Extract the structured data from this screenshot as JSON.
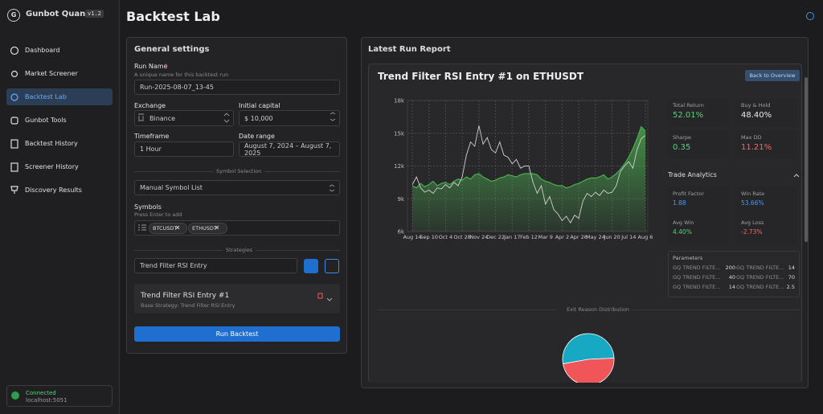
{
  "sidebar": {
    "logo": "G",
    "brand": "Gunbot Quant",
    "version": "v1.2",
    "nav": [
      "Dashboard",
      "Market Screener",
      "Backtest Lab",
      "Gunbot Tools",
      "Backtest History",
      "Screener History",
      "Discovery Results"
    ],
    "status": "Connected",
    "host": "localhost:5051"
  },
  "header": {
    "title": "Backtest Lab"
  },
  "settings": {
    "title": "General settings",
    "run_name_label": "Run Name",
    "required_mark": "*",
    "run_name_help": "A unique name for this backtest run",
    "run_name": "Run-2025-08-07_13-45",
    "exchange_label": "Exchange",
    "exchange": "Binance",
    "capital_label": "Initial capital",
    "capital": "$ 10,000",
    "timeframe_label": "Timeframe",
    "timeframe": "1 Hour",
    "date_label": "Date range",
    "date_range": "August 7, 2024 – August 7, 2025",
    "symbol_divider": "Symbol Selection",
    "symbol_mode": "Manual Symbol List",
    "symbols_label": "Symbols",
    "symbols_help": "Press Enter to add",
    "symbols": [
      "BTCUSDT",
      "ETHUSDT"
    ],
    "strategy_divider": "Strategies",
    "strategy_select": "Trend Filter RSI Entry",
    "strategy_card_title": "Trend Filter RSI Entry #1",
    "strategy_card_sub": "Base Strategy: Trend Filter RSI Entry",
    "run_button": "Run Backtest"
  },
  "report": {
    "title": "Latest Run Report",
    "run_title": "Trend Filter RSI Entry #1 on ETHUSDT",
    "back_button": "Back to Overview",
    "metrics": [
      {
        "label": "Total Return",
        "value": "52.01%"
      },
      {
        "label": "Buy & Hold",
        "value": "48.40%"
      },
      {
        "label": "Sharpe",
        "value": "0.35"
      },
      {
        "label": "Max DD",
        "value": "11.21%"
      }
    ],
    "analytics_title": "Trade Analytics",
    "analytics": [
      {
        "label": "Profit Factor",
        "value": "1.88"
      },
      {
        "label": "Win Rate",
        "value": "53.66%"
      },
      {
        "label": "Avg Win",
        "value": "4.40%"
      },
      {
        "label": "Avg Loss",
        "value": "-2.73%"
      }
    ],
    "parameters_title": "Parameters",
    "parameters": [
      [
        "GQ TREND FILTE...",
        "200",
        "GQ TREND FILTE...",
        "14"
      ],
      [
        "GQ TREND FILTE...",
        "40",
        "GQ TREND FILTE...",
        "70"
      ],
      [
        "GQ TREND FILTE...",
        "14",
        "GQ TREND FILTE...",
        "2.5"
      ]
    ]
  },
  "chart_data": [
    {
      "type": "line",
      "categories": [
        "Aug 14",
        null,
        null,
        null,
        "Sep 10",
        null,
        null,
        null,
        "Oct 4",
        null,
        null,
        null,
        "Oct 28",
        null,
        null,
        null,
        "Nov 24",
        null,
        null,
        null,
        "Dec 22",
        null,
        null,
        null,
        "Jan 17",
        null,
        null,
        null,
        "Feb 12",
        null,
        null,
        null,
        "Mar 9",
        null,
        null,
        null,
        "Apr 2",
        null,
        null,
        null,
        "Apr 26",
        null,
        null,
        null,
        "May 24",
        null,
        null,
        null,
        "Jun 20",
        null,
        null,
        null,
        "Jul 14",
        null,
        null,
        null,
        "Aug 6"
      ],
      "series": [
        {
          "color": "#4caf50",
          "area": true,
          "values": [
            10200,
            10000,
            10400,
            10100,
            10300,
            10600,
            10200,
            10400,
            10500,
            10300,
            10600,
            10800,
            10700,
            11000,
            10800,
            11200,
            11300,
            11000,
            10800,
            10600,
            10700,
            10900,
            11000,
            11200,
            11100,
            11000,
            11200,
            11300,
            11300,
            11300,
            11200,
            10800,
            10600,
            10500,
            10300,
            10200,
            10200,
            10000,
            10100,
            10300,
            10400,
            10600,
            10800,
            10900,
            10900,
            11000,
            11200,
            10800,
            11000,
            11300,
            11700,
            12200,
            12800,
            13600,
            14500,
            15600,
            15200
          ]
        },
        {
          "color": "#d0d0d0",
          "values": [
            10300,
            11000,
            10000,
            9600,
            9800,
            9500,
            10000,
            9900,
            10300,
            10000,
            10500,
            10200,
            11000,
            13000,
            14200,
            13800,
            15700,
            14000,
            14600,
            13500,
            13200,
            14200,
            13000,
            12800,
            12200,
            12600,
            11800,
            12000,
            12000,
            10500,
            9500,
            10200,
            8500,
            9200,
            8000,
            7600,
            7000,
            7400,
            6800,
            7500,
            7200,
            8800,
            9500,
            9200,
            9600,
            9300,
            9800,
            9500,
            9600,
            10200,
            11500,
            12000,
            12400,
            11800,
            13500,
            14500,
            14800
          ]
        }
      ],
      "ylim": [
        6000,
        18000
      ],
      "yticks": [
        {
          "value": 6000,
          "label": "6k"
        },
        {
          "value": 9000,
          "label": "9k"
        },
        {
          "value": 12000,
          "label": "12k"
        },
        {
          "value": 15000,
          "label": "15k"
        },
        {
          "value": 18000,
          "label": "18k"
        }
      ],
      "grid": true
    },
    {
      "type": "pie",
      "title": "Exit Reason Distribution",
      "categories": [
        null,
        null
      ],
      "values": [
        52,
        48
      ],
      "colors": [
        "#17a9c4",
        "#f0555a"
      ]
    }
  ]
}
